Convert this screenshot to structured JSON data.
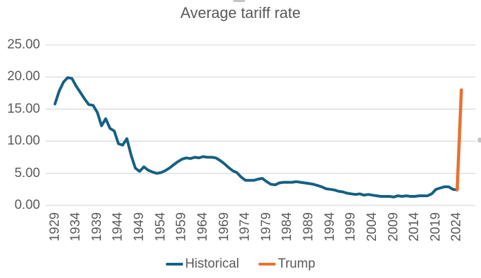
{
  "title": "Average tariff rate",
  "colors": {
    "historical": "#156082",
    "trump": "#E97132",
    "gridline": "#D9D9D9",
    "axis_text": "#595959",
    "title_text": "#595959",
    "background": "#FFFFFF",
    "selection_handle": "#C4C4C4"
  },
  "y_axis": {
    "tick_labels": [
      "25.00",
      "20.00",
      "15.00",
      "10.00",
      "5.00",
      "0.00"
    ],
    "min": 0,
    "max": 25,
    "step": 5
  },
  "x_axis": {
    "tick_labels": [
      "1929",
      "1934",
      "1939",
      "1944",
      "1949",
      "1954",
      "1959",
      "1964",
      "1969",
      "1974",
      "1979",
      "1984",
      "1989",
      "1994",
      "1999",
      "2004",
      "2009",
      "2014",
      "2019",
      "2024"
    ]
  },
  "legend": {
    "items": [
      {
        "label": "Historical",
        "color": "#156082"
      },
      {
        "label": "Trump",
        "color": "#E97132"
      }
    ]
  },
  "chart_data": {
    "type": "line",
    "title": "Average tariff rate",
    "xlabel": "",
    "ylabel": "",
    "ylim": [
      0,
      25
    ],
    "y_tick_step": 5,
    "x_tick_years": [
      1929,
      1934,
      1939,
      1944,
      1949,
      1954,
      1959,
      1964,
      1969,
      1974,
      1979,
      1984,
      1989,
      1994,
      1999,
      2004,
      2009,
      2014,
      2019,
      2024
    ],
    "grid": "horizontal",
    "legend_position": "bottom",
    "series": [
      {
        "name": "Historical",
        "color": "#156082",
        "years": [
          1929,
          1930,
          1931,
          1932,
          1933,
          1934,
          1935,
          1936,
          1937,
          1938,
          1939,
          1940,
          1941,
          1942,
          1943,
          1944,
          1945,
          1946,
          1947,
          1948,
          1949,
          1950,
          1951,
          1952,
          1953,
          1954,
          1955,
          1956,
          1957,
          1958,
          1959,
          1960,
          1961,
          1962,
          1963,
          1964,
          1965,
          1966,
          1967,
          1968,
          1969,
          1970,
          1971,
          1972,
          1973,
          1974,
          1975,
          1976,
          1977,
          1978,
          1979,
          1980,
          1981,
          1982,
          1983,
          1984,
          1985,
          1986,
          1987,
          1988,
          1989,
          1990,
          1991,
          1992,
          1993,
          1994,
          1995,
          1996,
          1997,
          1998,
          1999,
          2000,
          2001,
          2002,
          2003,
          2004,
          2005,
          2006,
          2007,
          2008,
          2009,
          2010,
          2011,
          2012,
          2013,
          2014,
          2015,
          2016,
          2017,
          2018,
          2019,
          2020,
          2021,
          2022,
          2023,
          2024
        ],
        "values": [
          15.8,
          17.8,
          19.2,
          19.9,
          19.8,
          18.6,
          17.6,
          16.6,
          15.7,
          15.6,
          14.5,
          12.4,
          13.5,
          12.0,
          11.6,
          9.6,
          9.4,
          10.4,
          7.8,
          5.8,
          5.3,
          6.0,
          5.5,
          5.2,
          5.0,
          5.1,
          5.4,
          5.8,
          6.3,
          6.8,
          7.2,
          7.4,
          7.3,
          7.5,
          7.4,
          7.6,
          7.5,
          7.5,
          7.4,
          7.0,
          6.5,
          5.9,
          5.4,
          5.1,
          4.4,
          3.9,
          3.9,
          3.9,
          4.1,
          4.2,
          3.7,
          3.3,
          3.2,
          3.5,
          3.6,
          3.6,
          3.6,
          3.7,
          3.6,
          3.5,
          3.4,
          3.3,
          3.1,
          2.9,
          2.6,
          2.5,
          2.4,
          2.2,
          2.1,
          1.9,
          1.8,
          1.7,
          1.8,
          1.6,
          1.7,
          1.6,
          1.5,
          1.4,
          1.4,
          1.4,
          1.3,
          1.5,
          1.4,
          1.5,
          1.4,
          1.4,
          1.5,
          1.5,
          1.5,
          1.8,
          2.5,
          2.7,
          2.9,
          2.9,
          2.5,
          2.4
        ]
      },
      {
        "name": "Trump",
        "color": "#E97132",
        "years": [
          2024,
          2025
        ],
        "values": [
          2.4,
          18.0
        ]
      }
    ]
  }
}
